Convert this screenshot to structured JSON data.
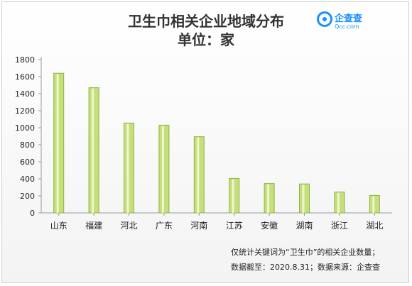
{
  "title_line1": "卫生巾相关企业地域分布",
  "title_line2": "单位：家",
  "brand": {
    "name": "企查查",
    "sub": "Qcc.com"
  },
  "notes": [
    "仅统计关键词为“卫生巾”的相关企业数量；",
    "数据截至：2020.8.31；数据来源：企查查"
  ],
  "colors": {
    "bar_fill": "#c5df7d",
    "bar_edge": "#8fb53b",
    "bar_highlight": "#eef6cf",
    "axis": "#9a9a9a"
  },
  "chart_data": {
    "type": "bar",
    "categories": [
      "山东",
      "福建",
      "河北",
      "广东",
      "河南",
      "江苏",
      "安徽",
      "湖南",
      "浙江",
      "湖北"
    ],
    "values": [
      1640,
      1470,
      1055,
      1030,
      895,
      405,
      345,
      340,
      245,
      205
    ],
    "yticks": [
      0,
      200,
      400,
      600,
      800,
      1000,
      1200,
      1400,
      1600,
      1800
    ],
    "ylim": [
      0,
      1800
    ],
    "xlabel": "",
    "ylabel": "",
    "grid": false,
    "legend": "none"
  }
}
